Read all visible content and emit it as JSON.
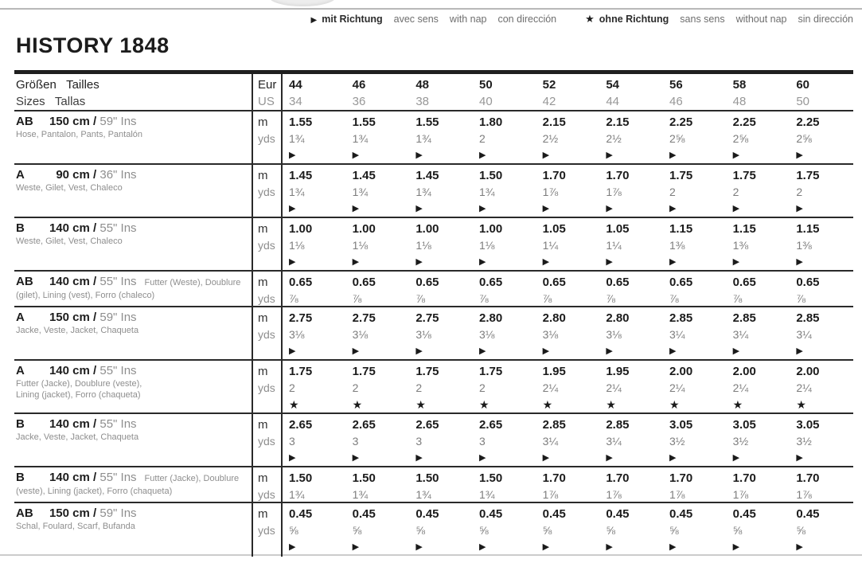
{
  "page": {
    "title": "HISTORY 1848"
  },
  "legend": {
    "nap_symbol": "▶",
    "nap_terms": [
      "mit Richtung",
      "avec sens",
      "with nap",
      "con dirección"
    ],
    "no_nap_symbol": "★",
    "no_nap_terms": [
      "ohne Richtung",
      "sans sens",
      "without nap",
      "sin dirección"
    ]
  },
  "table": {
    "header": {
      "label_line1": "Größen   Tailles",
      "label_line2": "Sizes   Tallas",
      "unit_line1": "Eur",
      "unit_line2": "US",
      "sizes_eur": [
        "44",
        "46",
        "48",
        "50",
        "52",
        "54",
        "56",
        "58",
        "60"
      ],
      "sizes_us": [
        "34",
        "36",
        "38",
        "40",
        "42",
        "44",
        "46",
        "48",
        "50"
      ]
    },
    "units": {
      "metric": "m",
      "imperial": "yds"
    },
    "cm_separator": " cm / ",
    "rows": [
      {
        "view": "AB",
        "width_cm": "150",
        "imperial": "59\" Ins",
        "extra_inline": "",
        "desc": [
          "Hose, Pantalon, Pants, Pantalón"
        ],
        "m": [
          "1.55",
          "1.55",
          "1.55",
          "1.80",
          "2.15",
          "2.15",
          "2.25",
          "2.25",
          "2.25"
        ],
        "yds": [
          "1¾",
          "1¾",
          "1¾",
          "2",
          "2½",
          "2½",
          "2⅝",
          "2⅝",
          "2⅝"
        ],
        "direction": "▶"
      },
      {
        "view": "A",
        "width_cm": "90",
        "imperial": "36\" Ins",
        "extra_inline": "",
        "desc": [
          "Weste, Gilet, Vest, Chaleco"
        ],
        "m": [
          "1.45",
          "1.45",
          "1.45",
          "1.50",
          "1.70",
          "1.70",
          "1.75",
          "1.75",
          "1.75"
        ],
        "yds": [
          "1¾",
          "1¾",
          "1¾",
          "1¾",
          "1⅞",
          "1⅞",
          "2",
          "2",
          "2"
        ],
        "direction": "▶"
      },
      {
        "view": "B",
        "width_cm": "140",
        "imperial": "55\" Ins",
        "extra_inline": "",
        "desc": [
          "Weste, Gilet, Vest, Chaleco"
        ],
        "m": [
          "1.00",
          "1.00",
          "1.00",
          "1.00",
          "1.05",
          "1.05",
          "1.15",
          "1.15",
          "1.15"
        ],
        "yds": [
          "1⅛",
          "1⅛",
          "1⅛",
          "1⅛",
          "1¼",
          "1¼",
          "1⅜",
          "1⅜",
          "1⅜"
        ],
        "direction": "▶"
      },
      {
        "view": "AB",
        "width_cm": "140",
        "imperial": "55\" Ins",
        "extra_inline": "Futter (Weste), Doublure",
        "desc": [
          "(gilet), Lining (vest), Forro (chaleco)"
        ],
        "m": [
          "0.65",
          "0.65",
          "0.65",
          "0.65",
          "0.65",
          "0.65",
          "0.65",
          "0.65",
          "0.65"
        ],
        "yds": [
          "⅞",
          "⅞",
          "⅞",
          "⅞",
          "⅞",
          "⅞",
          "⅞",
          "⅞",
          "⅞"
        ],
        "direction": ""
      },
      {
        "view": "A",
        "width_cm": "150",
        "imperial": "59\" Ins",
        "extra_inline": "",
        "desc": [
          "Jacke, Veste, Jacket, Chaqueta"
        ],
        "m": [
          "2.75",
          "2.75",
          "2.75",
          "2.80",
          "2.80",
          "2.80",
          "2.85",
          "2.85",
          "2.85"
        ],
        "yds": [
          "3⅛",
          "3⅛",
          "3⅛",
          "3⅛",
          "3⅛",
          "3⅛",
          "3¼",
          "3¼",
          "3¼"
        ],
        "direction": "▶"
      },
      {
        "view": "A",
        "width_cm": "140",
        "imperial": "55\" Ins",
        "extra_inline": "",
        "desc": [
          "Futter (Jacke), Doublure (veste),",
          "Lining (jacket), Forro (chaqueta)"
        ],
        "m": [
          "1.75",
          "1.75",
          "1.75",
          "1.75",
          "1.95",
          "1.95",
          "2.00",
          "2.00",
          "2.00"
        ],
        "yds": [
          "2",
          "2",
          "2",
          "2",
          "2¼",
          "2¼",
          "2¼",
          "2¼",
          "2¼"
        ],
        "direction": "★"
      },
      {
        "view": "B",
        "width_cm": "140",
        "imperial": "55\" Ins",
        "extra_inline": "",
        "desc": [
          "Jacke, Veste, Jacket, Chaqueta"
        ],
        "m": [
          "2.65",
          "2.65",
          "2.65",
          "2.65",
          "2.85",
          "2.85",
          "3.05",
          "3.05",
          "3.05"
        ],
        "yds": [
          "3",
          "3",
          "3",
          "3",
          "3¼",
          "3¼",
          "3½",
          "3½",
          "3½"
        ],
        "direction": "▶"
      },
      {
        "view": "B",
        "width_cm": "140",
        "imperial": "55\" Ins",
        "extra_inline": "Futter (Jacke), Doublure",
        "desc": [
          "(veste), Lining (jacket), Forro (chaqueta)"
        ],
        "m": [
          "1.50",
          "1.50",
          "1.50",
          "1.50",
          "1.70",
          "1.70",
          "1.70",
          "1.70",
          "1.70"
        ],
        "yds": [
          "1¾",
          "1¾",
          "1¾",
          "1¾",
          "1⅞",
          "1⅞",
          "1⅞",
          "1⅞",
          "1⅞"
        ],
        "direction": ""
      },
      {
        "view": "AB",
        "width_cm": "150",
        "imperial": "59\" Ins",
        "extra_inline": "",
        "desc": [
          "Schal, Foulard, Scarf, Bufanda"
        ],
        "m": [
          "0.45",
          "0.45",
          "0.45",
          "0.45",
          "0.45",
          "0.45",
          "0.45",
          "0.45",
          "0.45"
        ],
        "yds": [
          "⅝",
          "⅝",
          "⅝",
          "⅝",
          "⅝",
          "⅝",
          "⅝",
          "⅝",
          "⅝"
        ],
        "direction": "▶"
      }
    ]
  }
}
